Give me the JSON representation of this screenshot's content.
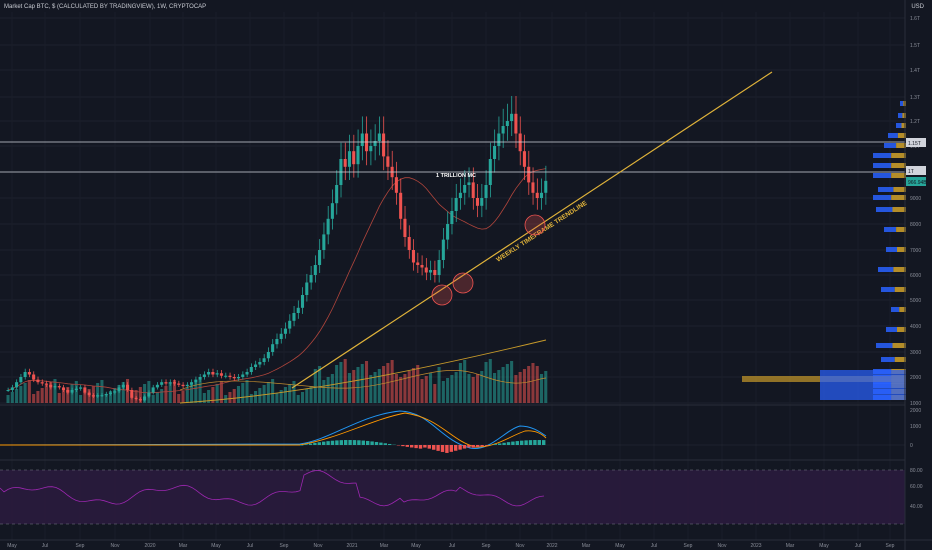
{
  "header": {
    "title": "Market Cap BTC, $ (CALCULATED BY TRADINGVIEW), 1W, CRYPTOCAP",
    "currency": "USD"
  },
  "colors": {
    "background": "#131722",
    "up": "#26a69a",
    "down": "#ef5350",
    "trendline": "#e0b33a",
    "ma": "#c79a2a",
    "volume_profile_blue": "#2962ff",
    "volume_profile_gold": "#c79a2a",
    "macd_line": "#2196f3",
    "signal_line": "#ff9800",
    "rsi_line": "#9c27b0",
    "rsi_band": "#2a1b3d"
  },
  "annotations": {
    "resistance_label": "1 TRILLION MC",
    "trendline_label": "WEEKLY TIMEFRAME TRENDLINE"
  },
  "price_axis": {
    "ticks": [
      "1.6T",
      "1.5T",
      "1.4T",
      "1.3T",
      "1.2T",
      "1.1T",
      "1T",
      "9000",
      "8000",
      "7000",
      "6000",
      "5000",
      "4000",
      "3000",
      "2000",
      "1000"
    ],
    "current_tags": [
      "1.15T",
      "1T",
      "966.94B"
    ]
  },
  "macd_axis": {
    "ticks": [
      "2000",
      "1000",
      "0"
    ]
  },
  "rsi_axis": {
    "ticks": [
      "80.00",
      "60.00",
      "40.00"
    ]
  },
  "time_axis": {
    "ticks": [
      "May",
      "Jul",
      "Sep",
      "Nov",
      "2020",
      "Mar",
      "May",
      "Jul",
      "Sep",
      "Nov",
      "2021",
      "Mar",
      "May",
      "Jul",
      "Sep",
      "Nov",
      "2022",
      "Mar",
      "May",
      "Jul",
      "Sep",
      "Nov",
      "2023",
      "Mar",
      "May",
      "Jul",
      "Sep"
    ]
  },
  "chart_data": {
    "type": "candlestick",
    "title": "Market Cap BTC, $ (CALCULATED BY TRADINGVIEW), 1W, CRYPTOCAP",
    "price_unit": "USD",
    "horizontal_levels": [
      1150,
      1000
    ],
    "series": [
      {
        "name": "BTC market cap weekly close (B$, approx)",
        "values": [
          150,
          160,
          180,
          200,
          220,
          210,
          190,
          180,
          175,
          170,
          160,
          165,
          160,
          150,
          140,
          150,
          155,
          160,
          140,
          130,
          125,
          130,
          130,
          135,
          140,
          145,
          160,
          170,
          150,
          120,
          115,
          110,
          125,
          140,
          160,
          170,
          180,
          175,
          180,
          175,
          170,
          165,
          170,
          180,
          190,
          200,
          210,
          220,
          210,
          215,
          205,
          205,
          200,
          195,
          200,
          210,
          220,
          240,
          250,
          260,
          275,
          300,
          330,
          350,
          370,
          390,
          420,
          450,
          470,
          520,
          570,
          600,
          640,
          700,
          760,
          820,
          880,
          950,
          1050,
          1020,
          1080,
          1030,
          1100,
          1150,
          1080,
          1100,
          1120,
          1150,
          1060,
          1020,
          980,
          920,
          820,
          750,
          700,
          650,
          640,
          630,
          610,
          620,
          600,
          660,
          740,
          800,
          850,
          900,
          920,
          950,
          960,
          900,
          870,
          900,
          950,
          1050,
          1100,
          1150,
          1180,
          1200,
          1230,
          1150,
          1080,
          1020,
          960,
          920,
          900,
          920,
          966
        ]
      }
    ]
  }
}
